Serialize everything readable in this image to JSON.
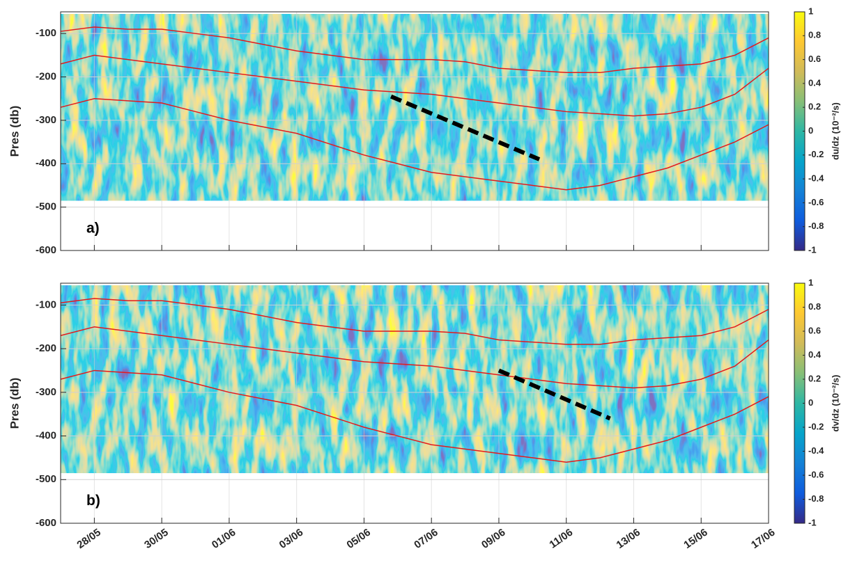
{
  "chart_data": [
    {
      "type": "heatmap",
      "panel_label": "a)",
      "ylabel": "Pres (db)",
      "colorbar_label": "du/dz (10⁻²/s)",
      "categories": [
        null,
        "28/05",
        null,
        "30/05",
        null,
        "01/06",
        null,
        "03/06",
        null,
        "05/06",
        null,
        "07/06",
        null,
        "09/06",
        null,
        "11/06",
        null,
        "13/06",
        null,
        "15/06",
        null,
        "17/06"
      ],
      "ylim": [
        -600,
        -50
      ],
      "yticks": [
        -600,
        -500,
        -400,
        -300,
        -200,
        -100
      ],
      "grid": true,
      "clim": [
        -1,
        1
      ],
      "cticks": [
        -1,
        -0.8,
        -0.6,
        -0.4,
        -0.2,
        0,
        0.2,
        0.4,
        0.6,
        0.8,
        1
      ],
      "colormap": [
        "#352a87",
        "#0f5cdd",
        "#1481d6",
        "#06a4ca",
        "#2eb7a4",
        "#87bf77",
        "#d1bb59",
        "#fec832",
        "#f9fb0e"
      ],
      "lines": [
        {
          "color": "#e41a1c",
          "values": [
            -95,
            -85,
            -90,
            -90,
            -100,
            -110,
            -125,
            -140,
            -150,
            -160,
            -160,
            -160,
            -165,
            -180,
            -185,
            -190,
            -190,
            -180,
            -175,
            -170,
            -150,
            -110
          ]
        },
        {
          "color": "#e41a1c",
          "values": [
            -170,
            -150,
            -160,
            -170,
            -180,
            -190,
            -200,
            -210,
            -220,
            -230,
            -235,
            -240,
            -250,
            -260,
            -270,
            -280,
            -285,
            -290,
            -285,
            -270,
            -240,
            -180
          ]
        },
        {
          "color": "#e41a1c",
          "values": [
            -270,
            -250,
            -255,
            -260,
            -280,
            -300,
            -315,
            -330,
            -355,
            -380,
            -400,
            -420,
            -430,
            -440,
            -450,
            -460,
            -450,
            -430,
            -410,
            -380,
            -350,
            -310
          ]
        }
      ],
      "trend_line": {
        "color": "#000000",
        "x": [
          9.8,
          14.2
        ],
        "y": [
          -245,
          -390
        ]
      }
    },
    {
      "type": "heatmap",
      "panel_label": "b)",
      "ylabel": "Pres (db)",
      "colorbar_label": "dv/dz (10⁻²/s)",
      "categories": [
        null,
        "28/05",
        null,
        "30/05",
        null,
        "01/06",
        null,
        "03/06",
        null,
        "05/06",
        null,
        "07/06",
        null,
        "09/06",
        null,
        "11/06",
        null,
        "13/06",
        null,
        "15/06",
        null,
        "17/06"
      ],
      "ylim": [
        -600,
        -50
      ],
      "yticks": [
        -600,
        -500,
        -400,
        -300,
        -200,
        -100
      ],
      "grid": true,
      "clim": [
        -1,
        1
      ],
      "cticks": [
        -1,
        -0.8,
        -0.6,
        -0.4,
        -0.2,
        0,
        0.2,
        0.4,
        0.6,
        0.8,
        1
      ],
      "colormap": [
        "#352a87",
        "#0f5cdd",
        "#1481d6",
        "#06a4ca",
        "#2eb7a4",
        "#87bf77",
        "#d1bb59",
        "#fec832",
        "#f9fb0e"
      ],
      "lines": [
        {
          "color": "#e41a1c",
          "values": [
            -95,
            -85,
            -90,
            -90,
            -100,
            -110,
            -125,
            -140,
            -150,
            -160,
            -160,
            -160,
            -165,
            -180,
            -185,
            -190,
            -190,
            -180,
            -175,
            -170,
            -150,
            -110
          ]
        },
        {
          "color": "#e41a1c",
          "values": [
            -170,
            -150,
            -160,
            -170,
            -180,
            -190,
            -200,
            -210,
            -220,
            -230,
            -235,
            -240,
            -250,
            -260,
            -270,
            -280,
            -285,
            -290,
            -285,
            -270,
            -240,
            -180
          ]
        },
        {
          "color": "#e41a1c",
          "values": [
            -270,
            -250,
            -255,
            -260,
            -280,
            -300,
            -315,
            -330,
            -355,
            -380,
            -400,
            -420,
            -430,
            -440,
            -450,
            -460,
            -450,
            -430,
            -410,
            -380,
            -350,
            -310
          ]
        }
      ],
      "trend_line": {
        "color": "#000000",
        "x": [
          13.0,
          16.3
        ],
        "y": [
          -250,
          -360
        ]
      }
    }
  ]
}
